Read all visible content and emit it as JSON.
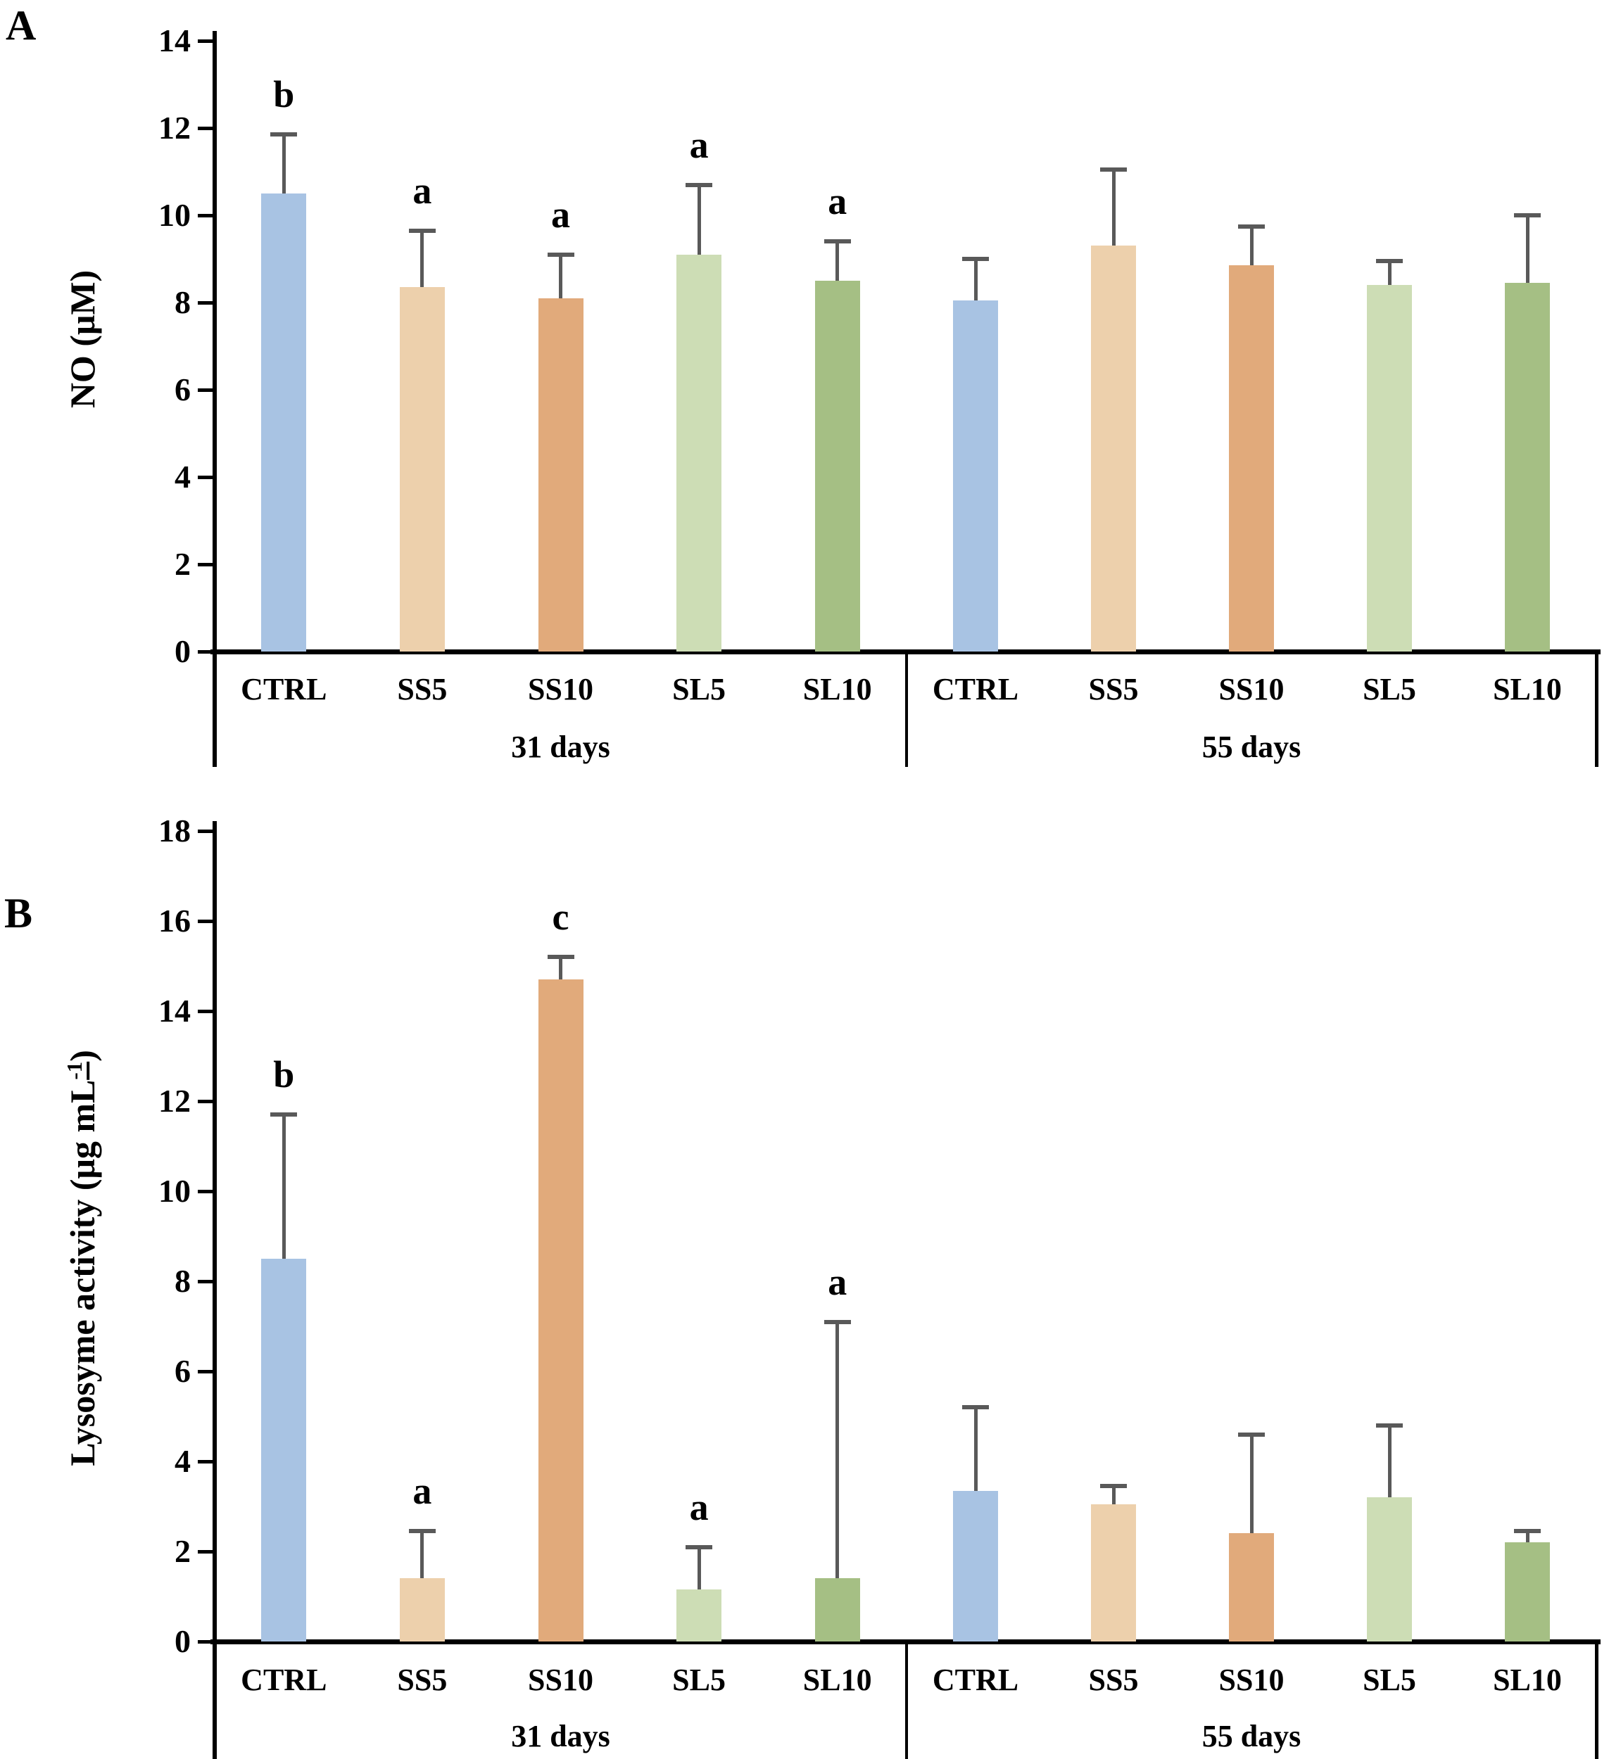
{
  "figure": {
    "panel_a_letter": "A",
    "panel_b_letter": "B"
  },
  "colors": {
    "CTRL": "#a8c3e3",
    "SS5": "#edd0ac",
    "SS10": "#e1aa7b",
    "SL5": "#cdddb5",
    "SL10": "#a5bf84",
    "error_bar": "#595959",
    "axis": "#000000",
    "background": "#ffffff"
  },
  "chart_data": [
    {
      "type": "bar",
      "panel": "A",
      "title": "",
      "xlabel": "",
      "ylabel": {
        "prefix": "NO (μM)",
        "sup": "",
        "suffix": ""
      },
      "ylim": [
        0,
        14
      ],
      "ytick_step": 2,
      "yticks": [
        0,
        2,
        4,
        6,
        8,
        10,
        12,
        14
      ],
      "grid": false,
      "legend": "none",
      "categories": [
        "CTRL",
        "SS5",
        "SS10",
        "SL5",
        "SL10"
      ],
      "groups": [
        {
          "label": "31 days",
          "values": [
            10.5,
            8.35,
            8.1,
            9.1,
            8.5
          ],
          "errors_plus": [
            1.35,
            1.3,
            1.0,
            1.6,
            0.9
          ],
          "sig_letters": [
            "b",
            "a",
            "a",
            "a",
            "a"
          ]
        },
        {
          "label": "55 days",
          "values": [
            8.05,
            9.3,
            8.85,
            8.4,
            8.45
          ],
          "errors_plus": [
            0.95,
            1.75,
            0.9,
            0.55,
            1.55
          ],
          "sig_letters": [
            "",
            "",
            "",
            "",
            ""
          ]
        }
      ]
    },
    {
      "type": "bar",
      "panel": "B",
      "title": "",
      "xlabel": "",
      "ylabel": {
        "prefix": "Lysosyme activity (μg mL",
        "sup": "-1",
        "suffix": ")"
      },
      "ylim": [
        0,
        18
      ],
      "ytick_step": 2,
      "yticks": [
        0,
        2,
        4,
        6,
        8,
        10,
        12,
        14,
        16,
        18
      ],
      "grid": false,
      "legend": "none",
      "categories": [
        "CTRL",
        "SS5",
        "SS10",
        "SL5",
        "SL10"
      ],
      "groups": [
        {
          "label": "31 days",
          "values": [
            8.5,
            1.4,
            14.7,
            1.15,
            1.4
          ],
          "errors_plus": [
            3.2,
            1.05,
            0.5,
            0.95,
            5.7
          ],
          "sig_letters": [
            "b",
            "a",
            "c",
            "a",
            "a"
          ]
        },
        {
          "label": "55 days",
          "values": [
            3.35,
            3.05,
            2.4,
            3.2,
            2.2
          ],
          "errors_plus": [
            1.85,
            0.4,
            2.2,
            1.6,
            0.25
          ],
          "sig_letters": [
            "",
            "",
            "",
            "",
            ""
          ]
        }
      ]
    }
  ]
}
